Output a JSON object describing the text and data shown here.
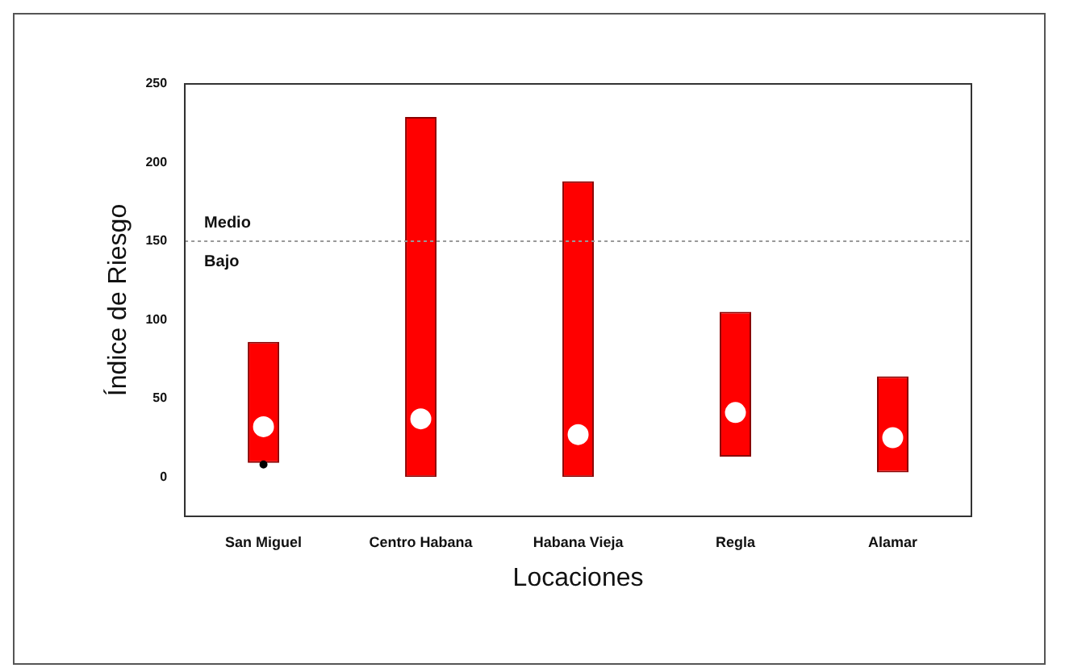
{
  "chart_data": {
    "type": "bar",
    "xlabel": "Locaciones",
    "ylabel": "Índice de Riesgo",
    "categories": [
      "San Miguel",
      "Centro Habana",
      "Habana Vieja",
      "Regla",
      "Alamar"
    ],
    "ylim": [
      -25,
      250
    ],
    "yticks": [
      0,
      50,
      100,
      150,
      200,
      250
    ],
    "grid": false,
    "legend": false,
    "marker": "circle",
    "series": [
      {
        "color": "#ff0000",
        "base": [
          9,
          0,
          0,
          13,
          3
        ],
        "values": [
          77,
          229,
          188,
          92,
          61
        ]
      },
      {
        "type": "scatter",
        "color": "#ffffff",
        "x": [
          "San Miguel",
          "Centro Habana",
          "Habana Vieja",
          "Regla",
          "Alamar"
        ],
        "values": [
          32,
          37,
          27,
          41,
          25
        ]
      },
      {
        "type": "scatter",
        "color": "#000000",
        "x": [
          "San Miguel"
        ],
        "values": [
          8
        ]
      }
    ],
    "ref_lines": [
      {
        "axis": "y",
        "value": 150,
        "label": "Medio",
        "color": "#999999",
        "line_style": "dotted"
      }
    ],
    "annotations": [
      {
        "text": "Bajo",
        "y": 150
      }
    ]
  }
}
